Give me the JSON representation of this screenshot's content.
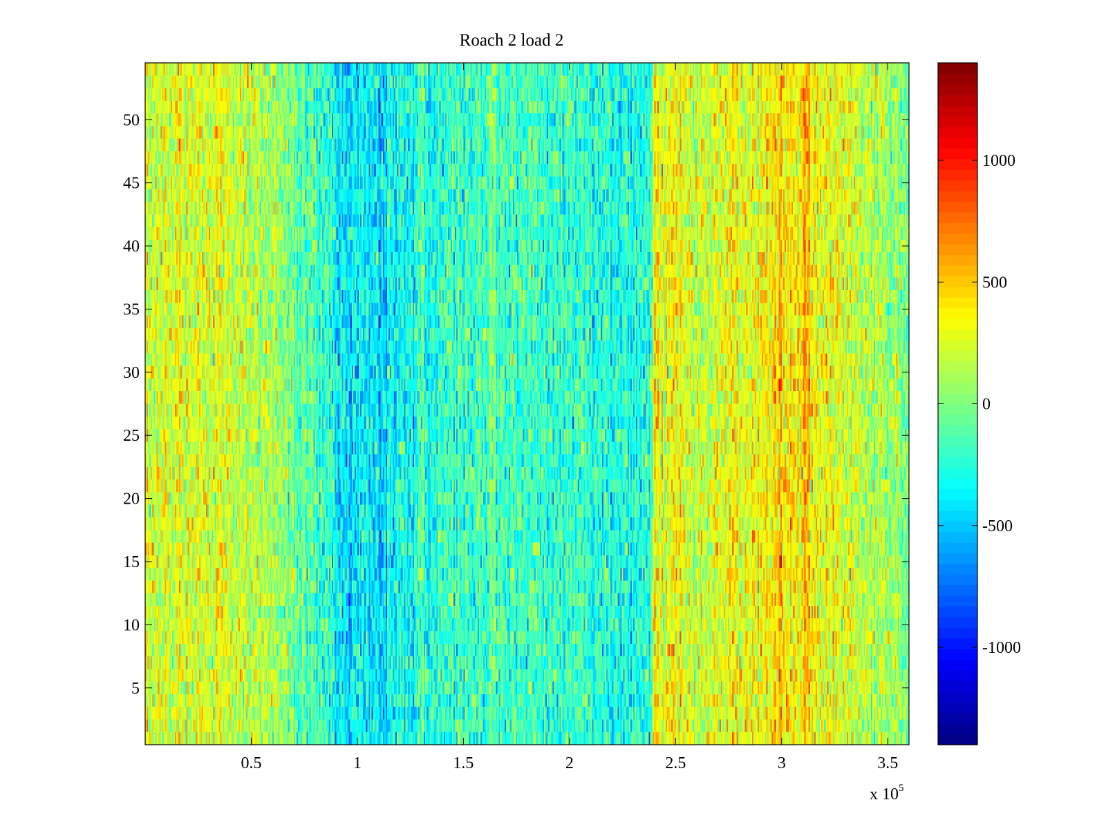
{
  "chart_data": {
    "type": "heatmap",
    "title": "Roach 2 load 2",
    "xlabel": "",
    "ylabel": "",
    "x_range": [
      0,
      360000
    ],
    "y_range": [
      0.5,
      54.5
    ],
    "x_multiplier_label": "x 10",
    "x_multiplier_exponent": "5",
    "x_ticks": [
      {
        "value": 50000,
        "label": "0.5"
      },
      {
        "value": 100000,
        "label": "1"
      },
      {
        "value": 150000,
        "label": "1.5"
      },
      {
        "value": 200000,
        "label": "2"
      },
      {
        "value": 250000,
        "label": "2.5"
      },
      {
        "value": 300000,
        "label": "3"
      },
      {
        "value": 350000,
        "label": "3.5"
      }
    ],
    "y_ticks": [
      {
        "value": 5,
        "label": "5"
      },
      {
        "value": 10,
        "label": "10"
      },
      {
        "value": 15,
        "label": "15"
      },
      {
        "value": 20,
        "label": "20"
      },
      {
        "value": 25,
        "label": "25"
      },
      {
        "value": 30,
        "label": "30"
      },
      {
        "value": 35,
        "label": "35"
      },
      {
        "value": 40,
        "label": "40"
      },
      {
        "value": 45,
        "label": "45"
      },
      {
        "value": 50,
        "label": "50"
      }
    ],
    "rows": 54,
    "colormap": "jet",
    "colorbar": {
      "range": [
        -1400,
        1400
      ],
      "ticks": [
        {
          "value": -1000,
          "label": "-1000"
        },
        {
          "value": -500,
          "label": "-500"
        },
        {
          "value": 0,
          "label": "0"
        },
        {
          "value": 500,
          "label": "500"
        },
        {
          "value": 1000,
          "label": "1000"
        }
      ],
      "placement": "right"
    },
    "column_profile": [
      {
        "x": 0,
        "mean": 260
      },
      {
        "x": 30000,
        "mean": 280
      },
      {
        "x": 60000,
        "mean": 120
      },
      {
        "x": 80000,
        "mean": -120
      },
      {
        "x": 95000,
        "mean": -380
      },
      {
        "x": 110000,
        "mean": -420
      },
      {
        "x": 130000,
        "mean": -260
      },
      {
        "x": 160000,
        "mean": -140
      },
      {
        "x": 190000,
        "mean": -180
      },
      {
        "x": 215000,
        "mean": -220
      },
      {
        "x": 238000,
        "mean": -260
      },
      {
        "x": 240000,
        "mean": 480
      },
      {
        "x": 242000,
        "mean": 350
      },
      {
        "x": 260000,
        "mean": 200
      },
      {
        "x": 290000,
        "mean": 380
      },
      {
        "x": 310000,
        "mean": 420
      },
      {
        "x": 330000,
        "mean": 260
      },
      {
        "x": 360000,
        "mean": 40
      }
    ],
    "noise_std": 230,
    "grid": false
  }
}
